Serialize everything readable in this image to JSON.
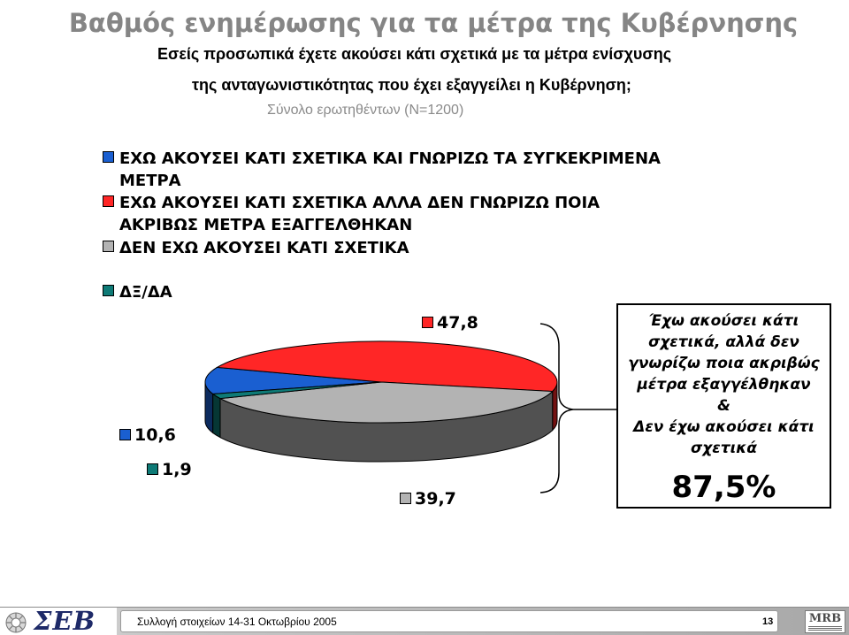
{
  "header": {
    "question_lines": [
      "Εσείς προσωπικά έχετε ακούσει κάτι σχετικά με τα μέτρα ενίσχυσης",
      "της ανταγωνιστικότητας που έχει εξαγγείλει η Κυβέρνηση;"
    ],
    "base": "Σύνολο ερωτηθέντων (Ν=1200)"
  },
  "chart_data": {
    "type": "pie",
    "style": "3d",
    "title": "Βαθμός ενημέρωσης για τα μέτρα της Κυβέρνησης",
    "legend_position": "top-left",
    "slices": [
      {
        "name_lines": [
          "ΕΧΩ ΑΚΟΥΣΕΙ ΚΑΤΙ ΣΧΕΤΙΚΑ ΚΑΙ ΓΝΩΡΙΖΩ ΤΑ ΣΥΓΚΕΚΡΙΜΕΝΑ",
          "ΜΕΤΡΑ"
        ],
        "value": 10.6,
        "value_label": "10,6",
        "color": "#1a5fd1"
      },
      {
        "name_lines": [
          "ΕΧΩ ΑΚΟΥΣΕΙ ΚΑΤΙ ΣΧΕΤΙΚΑ ΑΛΛΑ ΔΕΝ ΓΝΩΡΙΖΩ ΠΟΙΑ",
          "ΑΚΡΙΒΩΣ ΜΕΤΡΑ ΕΞΑΓΓΕΛΘΗΚΑΝ"
        ],
        "value": 47.8,
        "value_label": "47,8",
        "color": "#ff2626"
      },
      {
        "name_lines": [
          "ΔΕΝ ΕΧΩ ΑΚΟΥΣΕΙ ΚΑΤΙ ΣΧΕΤΙΚΑ"
        ],
        "value": 39.7,
        "value_label": "39,7",
        "color": "#b3b3b3"
      },
      {
        "name_lines": [
          "ΔΞ/ΔΑ"
        ],
        "value": 1.9,
        "value_label": "1,9",
        "color": "#0e7a76"
      }
    ]
  },
  "callout": {
    "lines": [
      "Έχω ακούσει κάτι",
      "σχετικά, αλλά δεν",
      "γνωρίζω ποια ακριβώς",
      "μέτρα εξαγγέλθηκαν",
      "&",
      "Δεν έχω ακούσει κάτι",
      "σχετικά"
    ],
    "total": "87,5%"
  },
  "footer": {
    "left_logo": "ΣΕΒ",
    "text": "Συλλογή στοιχείων 14-31 Οκτωβρίου 2005",
    "page": "13",
    "right_logo": "MRB"
  }
}
